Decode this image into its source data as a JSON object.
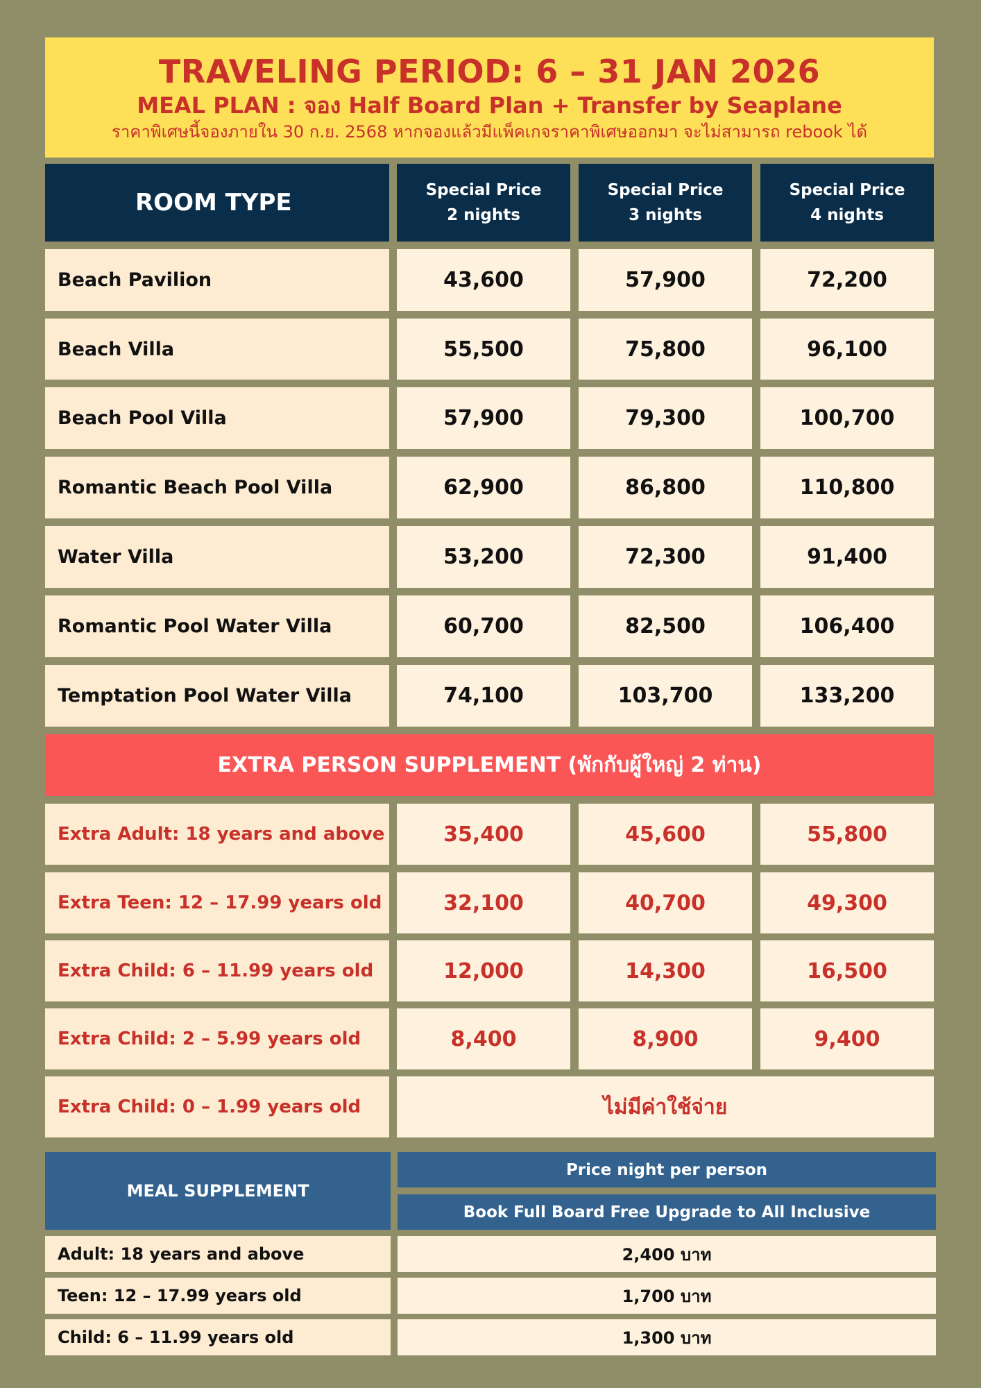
{
  "header": {
    "title": "TRAVELING PERIOD:  6 – 31 JAN 2026",
    "meal_plan": "MEAL PLAN : จอง Half Board Plan + Transfer by Seaplane",
    "note": "ราคาพิเศษนี้จองภายใน 30 ก.ย. 2568 หากจองแล้วมีแพ็คเกจราคาพิเศษออกมา จะไม่สามารถ rebook ได้"
  },
  "table_head": {
    "room_type": "ROOM TYPE",
    "columns": [
      {
        "line1": "Special Price",
        "line2": "2 nights"
      },
      {
        "line1": "Special Price",
        "line2": "3 nights"
      },
      {
        "line1": "Special Price",
        "line2": "4 nights"
      }
    ]
  },
  "rooms": [
    {
      "name": "Beach Pavilion",
      "prices": [
        "43,600",
        "57,900",
        "72,200"
      ]
    },
    {
      "name": "Beach Villa",
      "prices": [
        "55,500",
        "75,800",
        "96,100"
      ]
    },
    {
      "name": "Beach Pool Villa",
      "prices": [
        "57,900",
        "79,300",
        "100,700"
      ]
    },
    {
      "name": "Romantic Beach Pool Villa",
      "prices": [
        "62,900",
        "86,800",
        "110,800"
      ]
    },
    {
      "name": "Water Villa",
      "prices": [
        "53,200",
        "72,300",
        "91,400"
      ]
    },
    {
      "name": "Romantic Pool Water Villa",
      "prices": [
        "60,700",
        "82,500",
        "106,400"
      ]
    },
    {
      "name": "Temptation Pool Water Villa",
      "prices": [
        "74,100",
        "103,700",
        "133,200"
      ]
    }
  ],
  "extra_person": {
    "title": "EXTRA PERSON SUPPLEMENT (พักกับผู้ใหญ่ 2 ท่าน)",
    "rows": [
      {
        "name": "Extra Adult:  18 years and above",
        "prices": [
          "35,400",
          "45,600",
          "55,800"
        ]
      },
      {
        "name": "Extra Teen:  12 – 17.99 years old",
        "prices": [
          "32,100",
          "40,700",
          "49,300"
        ]
      },
      {
        "name": "Extra Child:  6 – 11.99 years old",
        "prices": [
          "12,000",
          "14,300",
          "16,500"
        ]
      },
      {
        "name": "Extra Child:  2 – 5.99 years old",
        "prices": [
          "8,400",
          "8,900",
          "9,400"
        ]
      }
    ],
    "free_row": {
      "name": "Extra Child:  0 – 1.99 years old",
      "value": "ไม่มีค่าใช้จ่าย"
    }
  },
  "meal_supplement": {
    "title": "MEAL SUPPLEMENT",
    "price_header": "Price night per person",
    "sub_header": "Book Full Board Free Upgrade to All Inclusive",
    "rows": [
      {
        "name": "Adult: 18 years and above",
        "price": "2,400 บาท"
      },
      {
        "name": "Teen: 12 – 17.99 years old",
        "price": "1,700 บาท"
      },
      {
        "name": "Child: 6 – 11.99 years old",
        "price": "1,300 บาท"
      }
    ]
  }
}
